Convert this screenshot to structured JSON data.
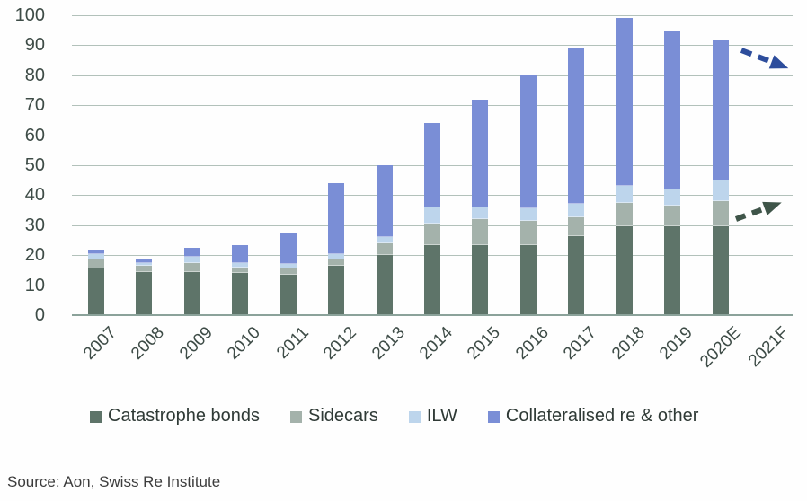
{
  "chart_data": {
    "type": "bar",
    "stacked": true,
    "categories": [
      "2007",
      "2008",
      "2009",
      "2010",
      "2011",
      "2012",
      "2013",
      "2014",
      "2015",
      "2016",
      "2017",
      "2018",
      "2019",
      "2020E",
      "2021F"
    ],
    "series": [
      {
        "name": "Catastrophe bonds",
        "color": "#5e7469",
        "values": [
          15.5,
          14.5,
          14.5,
          14,
          13.5,
          16.5,
          20,
          23.5,
          23.5,
          23.5,
          26.5,
          29.5,
          29.5,
          29.5,
          null
        ]
      },
      {
        "name": "Sidecars",
        "color": "#a4b2ab",
        "values": [
          3,
          2,
          3,
          2,
          2,
          2,
          4,
          7,
          8.5,
          8,
          6,
          8,
          7,
          8.5,
          null
        ]
      },
      {
        "name": "ILW",
        "color": "#bdd5ec",
        "values": [
          2,
          1,
          2,
          1.5,
          1.5,
          2,
          2,
          5.5,
          4,
          4,
          4.5,
          5.5,
          5.5,
          7,
          null
        ]
      },
      {
        "name": "Collateralised re & other",
        "color": "#7a8ed6",
        "values": [
          1.5,
          1.5,
          3,
          6,
          10.5,
          23.5,
          24,
          28,
          36,
          44.5,
          52,
          56,
          53,
          47,
          null
        ]
      }
    ],
    "totals": [
      22,
      19,
      22.5,
      23.5,
      27.5,
      44,
      50,
      64,
      72,
      80,
      89,
      99,
      95,
      92,
      null
    ],
    "ylim": [
      0,
      100
    ],
    "yticks": [
      "0",
      "10",
      "20",
      "30",
      "40",
      "50",
      "60",
      "70",
      "80",
      "90",
      "100"
    ],
    "grid": "horizontal",
    "legend_position": "bottom",
    "annotations": [
      {
        "type": "arrow",
        "direction": "down-right",
        "color": "#2d4d9c"
      },
      {
        "type": "arrow",
        "direction": "up-right",
        "color": "#3f5549"
      }
    ]
  },
  "source_text": "Source: Aon, Swiss Re Institute"
}
